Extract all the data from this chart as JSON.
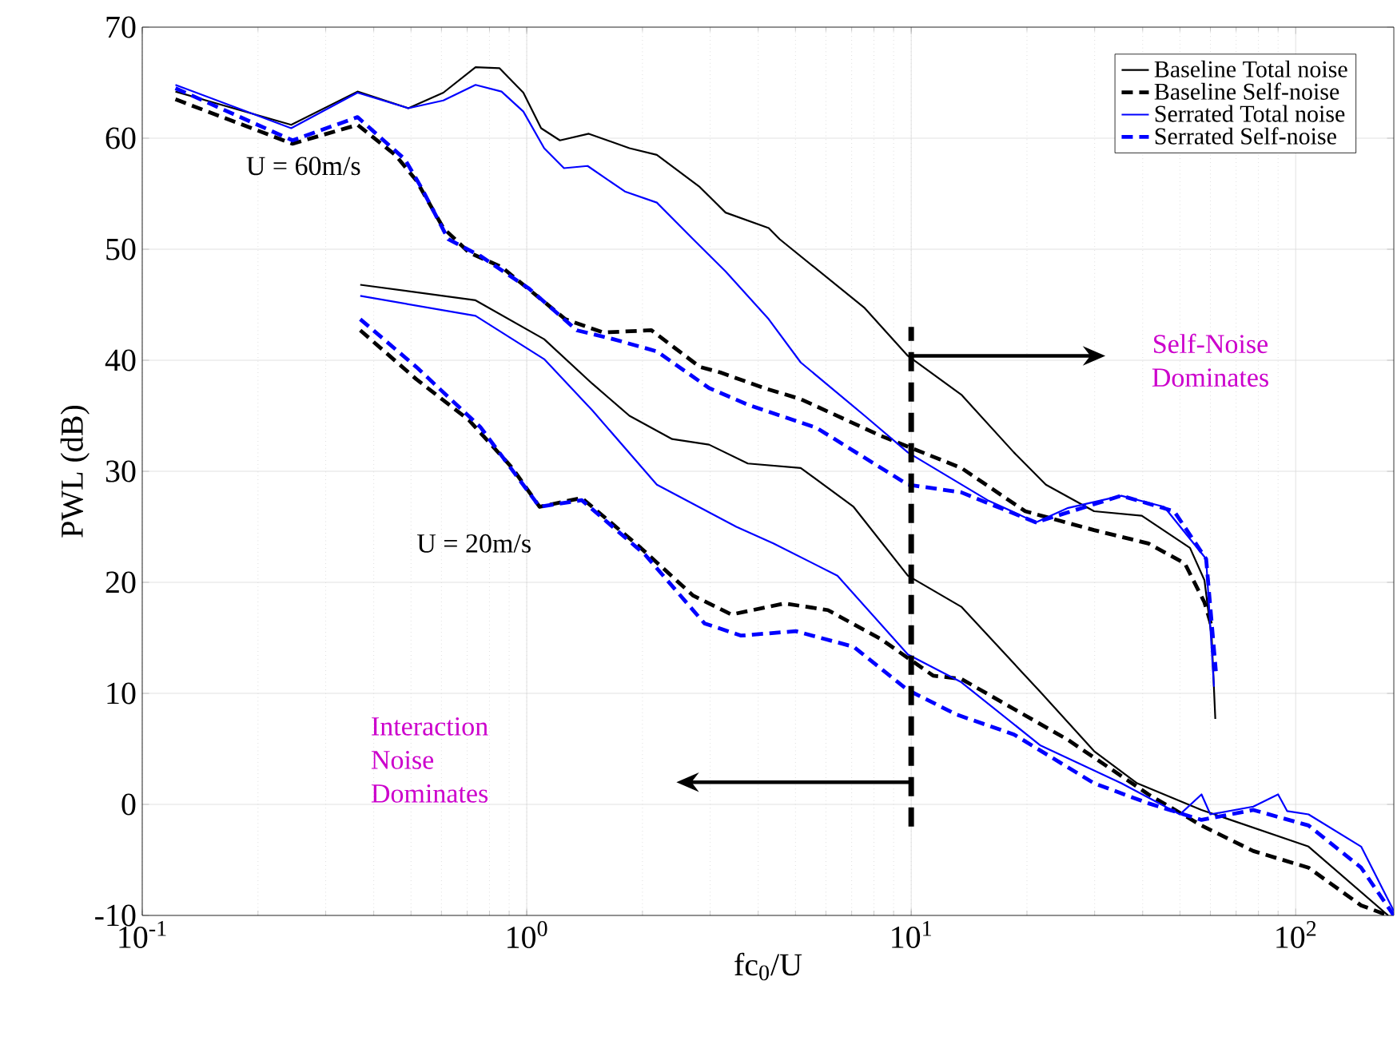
{
  "chart_data": {
    "type": "line",
    "xlabel": "fc$_{0}$/U",
    "ylabel": "PWL (dB)",
    "log": "x",
    "grid": true,
    "legend": "top right",
    "xlim": [
      0.1,
      180
    ],
    "ylim": [
      -10,
      70
    ],
    "xticks": [
      {
        "value": 0.1,
        "label": "10$^{-1}$"
      },
      {
        "value": 1,
        "label": "10$^{0}$"
      },
      {
        "value": 10,
        "label": "10$^{1}$"
      },
      {
        "value": 100,
        "label": "10$^{2}$"
      }
    ],
    "yticks": [
      -10,
      0,
      10,
      20,
      30,
      40,
      50,
      60,
      70
    ],
    "series": [
      {
        "name": "Baseline Total noise",
        "color": "#000000",
        "line_style": "solid",
        "x": [
          0.122,
          0.244,
          0.363,
          0.492,
          0.607,
          0.736,
          0.85,
          0.98,
          1.09,
          1.22,
          1.45,
          1.85,
          2.18,
          2.82,
          3.29,
          4.26,
          4.55,
          7.57,
          9.8,
          13.5,
          18.5,
          22.4,
          29.9,
          39.8,
          53.1,
          57.9,
          60.5,
          61.8
        ],
        "values": [
          64.2,
          61.2,
          64.2,
          62.7,
          64.1,
          66.4,
          66.3,
          64.1,
          60.9,
          59.8,
          60.4,
          59.1,
          58.5,
          55.6,
          53.3,
          51.9,
          50.9,
          44.7,
          40.4,
          36.9,
          31.7,
          28.8,
          26.4,
          26.0,
          23.1,
          20.2,
          14.9,
          7.7
        ]
      },
      {
        "name": "Baseline Self-noise",
        "color": "#000000",
        "line_style": "dashed",
        "x": [
          0.122,
          0.246,
          0.363,
          0.455,
          0.516,
          0.607,
          0.708,
          0.86,
          1.26,
          1.58,
          2.11,
          2.82,
          3.19,
          4.14,
          5.16,
          8.33,
          13.5,
          19.8,
          29.9,
          41.4,
          51.5,
          57.9,
          60.5
        ],
        "values": [
          63.5,
          59.5,
          61.2,
          58.5,
          56.2,
          51.9,
          49.7,
          48.4,
          43.7,
          42.5,
          42.7,
          39.4,
          38.9,
          37.5,
          36.5,
          33.2,
          30.3,
          26.4,
          24.7,
          23.5,
          21.7,
          18.2,
          16.0
        ]
      },
      {
        "name": "Serrated Total noise",
        "color": "#0000ff",
        "line_style": "solid",
        "x": [
          0.122,
          0.244,
          0.363,
          0.492,
          0.607,
          0.736,
          0.86,
          0.98,
          1.11,
          1.25,
          1.44,
          1.8,
          2.18,
          2.71,
          3.29,
          4.26,
          5.16,
          7.57,
          9.8,
          15.8,
          21.1,
          25.6,
          35.2,
          45.5,
          58.5,
          61.3
        ],
        "values": [
          64.8,
          60.9,
          64.1,
          62.7,
          63.4,
          64.8,
          64.2,
          62.4,
          59.1,
          57.3,
          57.5,
          55.2,
          54.2,
          50.9,
          48.0,
          43.7,
          39.8,
          35.0,
          31.7,
          27.4,
          25.4,
          26.7,
          27.8,
          26.8,
          22.1,
          10.6
        ]
      },
      {
        "name": "Serrated Self-noise",
        "color": "#0000ff",
        "line_style": "dashed",
        "x": [
          0.122,
          0.246,
          0.363,
          0.482,
          0.531,
          0.625,
          0.757,
          1.01,
          1.35,
          1.68,
          2.18,
          2.98,
          3.76,
          5.68,
          9.8,
          13.5,
          21.1,
          35.2,
          48.3,
          58.5,
          62
        ],
        "values": [
          64.5,
          59.8,
          61.9,
          58.1,
          55.6,
          50.9,
          49.4,
          46.5,
          42.7,
          41.9,
          40.8,
          37.5,
          36.0,
          33.9,
          28.8,
          28.1,
          25.4,
          27.8,
          26.4,
          22.1,
          12.0
        ]
      },
      {
        "color": "#000000",
        "line_style": "solid",
        "x": [
          0.369,
          0.736,
          1.11,
          1.48,
          1.85,
          2.39,
          2.98,
          3.76,
          5.16,
          7.08,
          9.8,
          13.5,
          21.7,
          29.9,
          38.7,
          56.9,
          108,
          174
        ],
        "values": [
          46.8,
          45.4,
          41.9,
          37.9,
          35.0,
          32.9,
          32.4,
          30.7,
          30.3,
          26.8,
          20.6,
          17.8,
          10.1,
          4.8,
          1.9,
          -0.5,
          -3.8,
          -10
        ]
      },
      {
        "color": "#000000",
        "line_style": "dashed",
        "x": [
          0.369,
          0.516,
          0.708,
          0.917,
          1.08,
          1.39,
          1.98,
          2.71,
          3.41,
          4.68,
          6.07,
          8.33,
          11.4,
          13.5,
          25.6,
          41.4,
          56.9,
          77.6,
          108,
          148,
          174
        ],
        "values": [
          42.7,
          38.3,
          34.6,
          30.3,
          26.8,
          27.6,
          23.1,
          18.8,
          17.1,
          18.1,
          17.5,
          14.9,
          11.6,
          11.3,
          5.8,
          0.9,
          -1.9,
          -4.2,
          -5.7,
          -9.1,
          -10
        ]
      },
      {
        "color": "#0000ff",
        "line_style": "solid",
        "x": [
          0.369,
          0.736,
          1.11,
          1.48,
          2.18,
          3.51,
          4.38,
          6.43,
          9.8,
          13.5,
          21.7,
          35.2,
          50,
          56.9,
          60,
          77.6,
          90,
          95,
          108,
          148,
          180
        ],
        "values": [
          45.8,
          44.0,
          40.1,
          35.5,
          28.8,
          25.0,
          23.5,
          20.6,
          13.5,
          11.0,
          5.3,
          1.9,
          -0.9,
          0.9,
          -0.9,
          -0.2,
          0.9,
          -0.6,
          -0.9,
          -3.8,
          -9.6
        ]
      },
      {
        "color": "#0000ff",
        "line_style": "dashed",
        "x": [
          0.369,
          0.516,
          0.757,
          1.08,
          1.39,
          2.03,
          2.9,
          3.61,
          5.01,
          7.08,
          9.8,
          13.1,
          18.5,
          29.9,
          41.4,
          56.9,
          77.6,
          108,
          148,
          180
        ],
        "values": [
          43.7,
          39.4,
          34.0,
          26.8,
          27.4,
          22.5,
          16.3,
          15.2,
          15.6,
          14.2,
          10.3,
          8.1,
          6.3,
          1.9,
          0.1,
          -1.4,
          -0.5,
          -1.9,
          -5.7,
          -10
        ]
      }
    ],
    "annotations": [
      "U = 60m/s",
      "U = 20m/s",
      "Self-Noise Dominates",
      "Interaction Noise Dominates"
    ],
    "ref_lines": [
      {
        "axis": "x",
        "value": 10,
        "line_style": "dashed",
        "color": "#000000"
      }
    ]
  }
}
